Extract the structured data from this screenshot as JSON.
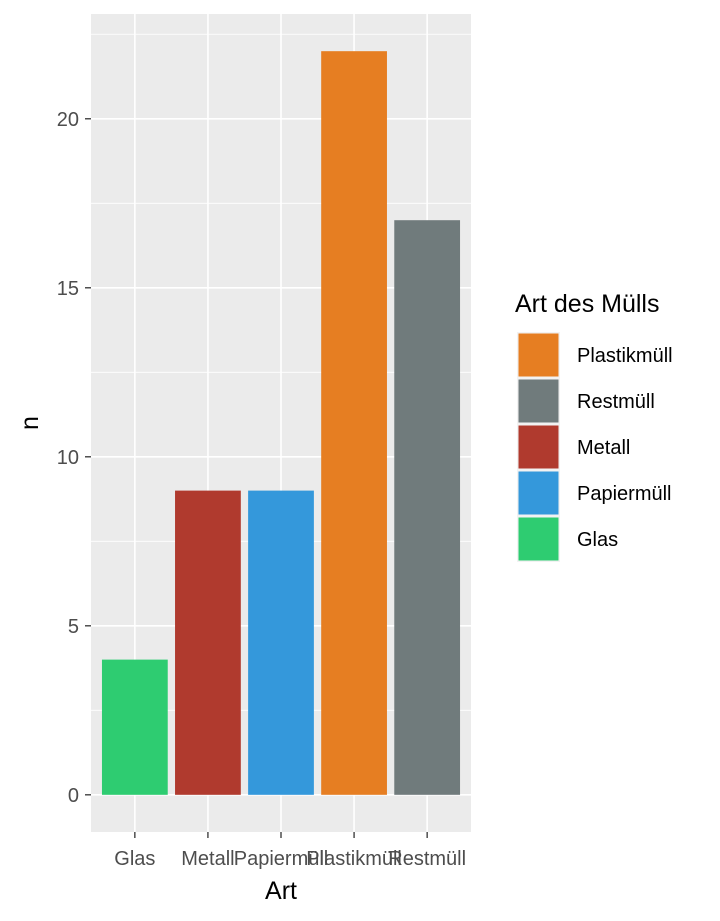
{
  "chart_data": {
    "type": "bar",
    "xlabel": "Art",
    "ylabel": "n",
    "categories": [
      "Glas",
      "Metall",
      "Papiermüll",
      "Plastikmüll",
      "Restmüll"
    ],
    "values": [
      4,
      9,
      9,
      22,
      17
    ],
    "colors": [
      "#2ECC71",
      "#B03A2E",
      "#3498DB",
      "#E67E22",
      "#707B7C"
    ],
    "ylim": [
      -1.1,
      23.1
    ],
    "yticks": [
      0,
      5,
      10,
      15,
      20
    ],
    "grid": true,
    "panel_background": "#EBEBEB",
    "legend": {
      "title": "Art des Mülls",
      "placement": "right",
      "items": [
        {
          "label": "Plastikmüll",
          "color": "#E67E22"
        },
        {
          "label": "Restmüll",
          "color": "#707B7C"
        },
        {
          "label": "Metall",
          "color": "#B03A2E"
        },
        {
          "label": "Papiermüll",
          "color": "#3498DB"
        },
        {
          "label": "Glas",
          "color": "#2ECC71"
        }
      ]
    }
  }
}
